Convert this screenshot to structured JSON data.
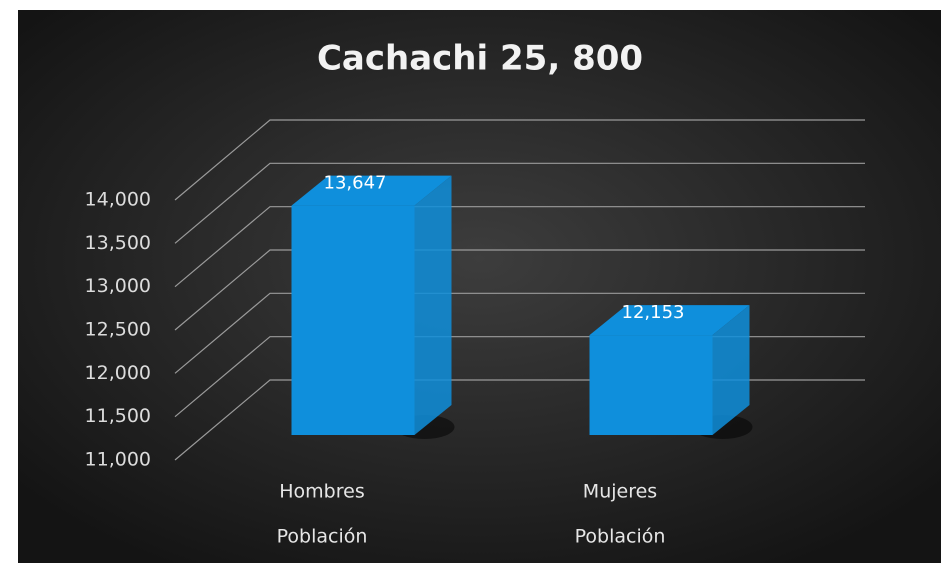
{
  "chart_data": {
    "type": "bar3d",
    "title": "Cachachi 25, 800",
    "categories": [
      "Hombres",
      "Mujeres"
    ],
    "sublabels": [
      "Población",
      "Población"
    ],
    "values": [
      13647,
      12153
    ],
    "value_labels": [
      "13,647",
      "12,153"
    ],
    "color": "#0f8fdc",
    "ylim": [
      11000,
      14000
    ],
    "yticks": [
      {
        "value": 11000,
        "label": "11,000"
      },
      {
        "value": 11500,
        "label": "11,500"
      },
      {
        "value": 12000,
        "label": "12,000"
      },
      {
        "value": 12500,
        "label": "12,500"
      },
      {
        "value": 13000,
        "label": "13,000"
      },
      {
        "value": 13500,
        "label": "13,500"
      },
      {
        "value": 14000,
        "label": "14,000"
      }
    ],
    "grid": true
  }
}
